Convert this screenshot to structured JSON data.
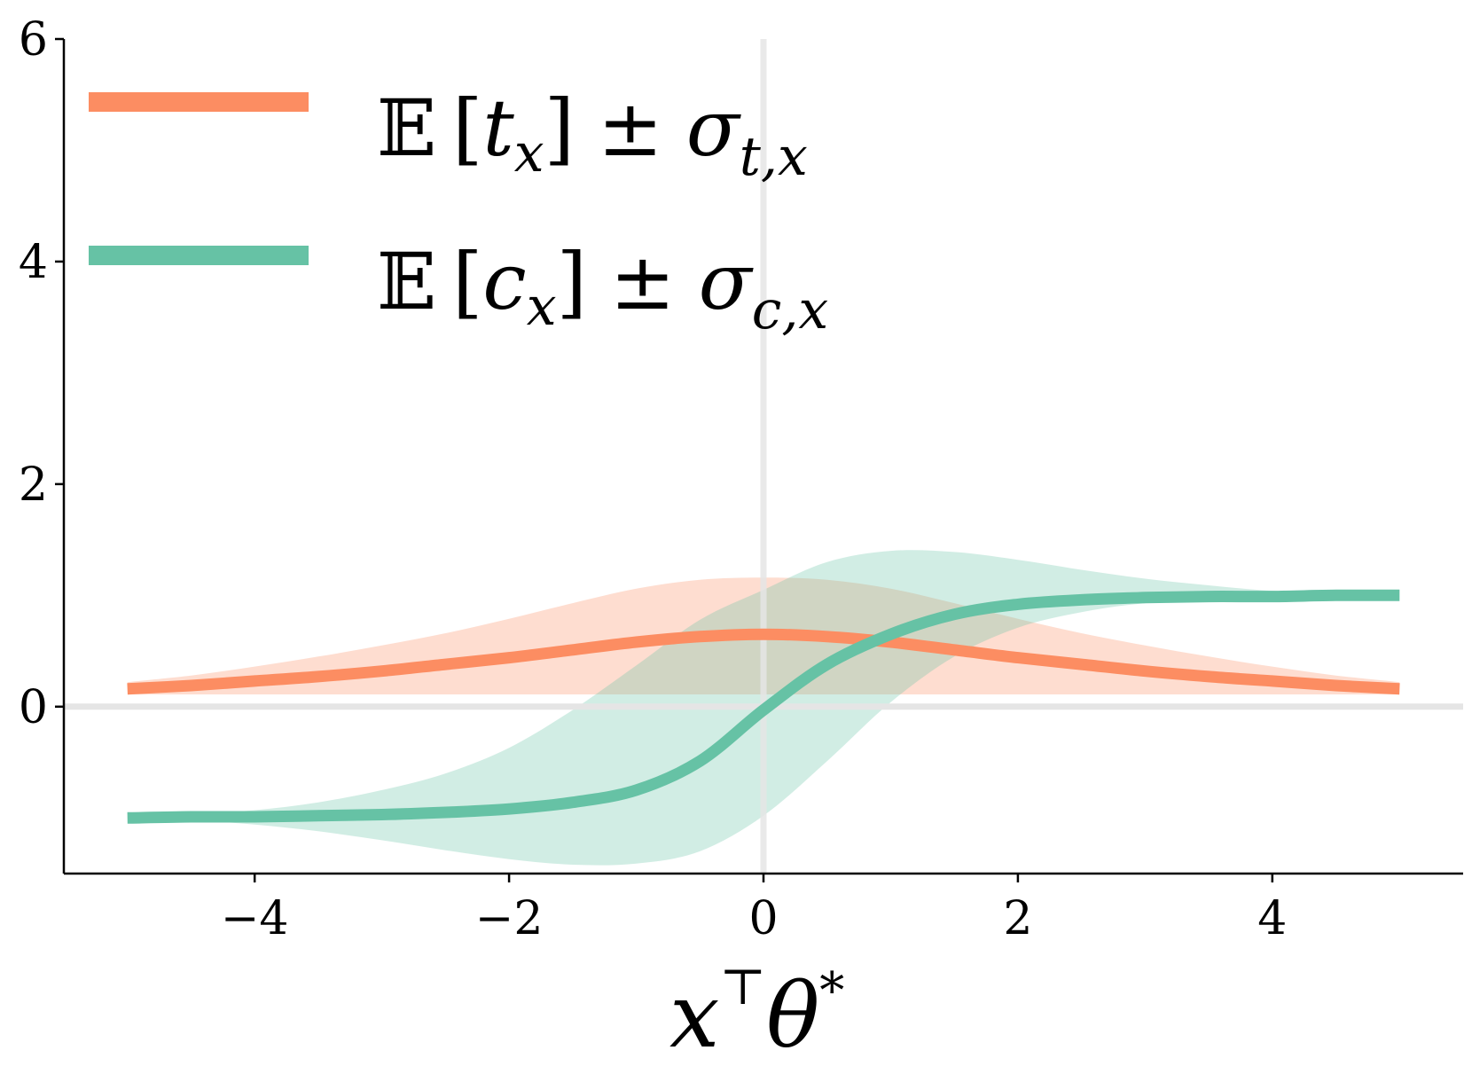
{
  "chart_data": {
    "type": "line",
    "title": "",
    "xlabel": {
      "base": "x",
      "sup": "⊤",
      "var": "θ",
      "star": "*"
    },
    "ylabel": "",
    "xlim": [
      -5.5,
      5.5
    ],
    "ylim": [
      -1.5,
      6
    ],
    "xticks": [
      -4,
      -2,
      0,
      2,
      4
    ],
    "xtick_labels": [
      "−4",
      "−2",
      "0",
      "2",
      "4"
    ],
    "yticks": [
      0,
      2,
      4,
      6
    ],
    "ytick_labels": [
      "0",
      "2",
      "4",
      "6"
    ],
    "grid": false,
    "reference_lines": {
      "x": 0,
      "y": 0,
      "color": "#e5e5e5"
    },
    "legend_position": "top-left",
    "x": [
      -5,
      -4.5,
      -4,
      -3.5,
      -3,
      -2.5,
      -2,
      -1.5,
      -1,
      -0.5,
      0,
      0.5,
      1,
      1.5,
      2,
      2.5,
      3,
      3.5,
      4,
      4.5,
      5
    ],
    "series": [
      {
        "name": "E[t_x] ± σ_t,x",
        "legend": {
          "bb": "𝔼",
          "open": "[",
          "var": "t",
          "sub": "x",
          "close": "]",
          "pm": "±",
          "sigma": "σ",
          "sigma_sub": "t,x"
        },
        "color": "#fc8d62",
        "mean": [
          0.16,
          0.19,
          0.23,
          0.27,
          0.32,
          0.38,
          0.44,
          0.51,
          0.58,
          0.63,
          0.65,
          0.63,
          0.58,
          0.51,
          0.44,
          0.38,
          0.32,
          0.27,
          0.23,
          0.19,
          0.16
        ],
        "lower": [
          0.11,
          0.11,
          0.11,
          0.11,
          0.11,
          0.11,
          0.11,
          0.11,
          0.11,
          0.11,
          0.11,
          0.11,
          0.11,
          0.11,
          0.11,
          0.11,
          0.11,
          0.11,
          0.11,
          0.11,
          0.11
        ],
        "upper": [
          0.22,
          0.28,
          0.36,
          0.45,
          0.55,
          0.66,
          0.79,
          0.93,
          1.06,
          1.14,
          1.16,
          1.14,
          1.06,
          0.93,
          0.79,
          0.66,
          0.55,
          0.45,
          0.36,
          0.28,
          0.22
        ]
      },
      {
        "name": "E[c_x] ± σ_c,x",
        "legend": {
          "bb": "𝔼",
          "open": "[",
          "var": "c",
          "sub": "x",
          "close": "]",
          "pm": "±",
          "sigma": "σ",
          "sigma_sub": "c,x"
        },
        "color": "#66c2a5",
        "mean": [
          -1.0,
          -0.99,
          -0.99,
          -0.98,
          -0.97,
          -0.95,
          -0.92,
          -0.86,
          -0.75,
          -0.49,
          -0.03,
          0.38,
          0.65,
          0.83,
          0.92,
          0.96,
          0.98,
          0.99,
          0.99,
          1.0,
          1.0
        ],
        "lower": [
          -1.0,
          -1.02,
          -1.06,
          -1.12,
          -1.2,
          -1.29,
          -1.37,
          -1.42,
          -1.41,
          -1.3,
          -0.98,
          -0.49,
          0.04,
          0.45,
          0.71,
          0.85,
          0.93,
          0.96,
          0.98,
          0.99,
          1.0
        ],
        "upper": [
          -1.0,
          -0.97,
          -0.93,
          -0.86,
          -0.75,
          -0.6,
          -0.37,
          -0.03,
          0.37,
          0.78,
          1.05,
          1.3,
          1.4,
          1.39,
          1.32,
          1.23,
          1.15,
          1.09,
          1.04,
          1.02,
          1.0
        ]
      }
    ]
  }
}
